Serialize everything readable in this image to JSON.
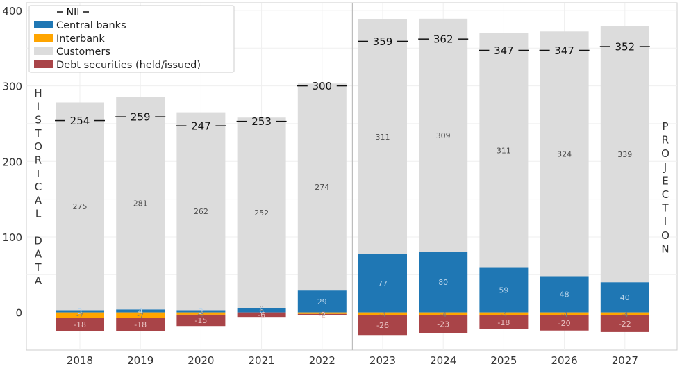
{
  "chart_data": {
    "type": "bar",
    "stacked": true,
    "categories": [
      "2018",
      "2019",
      "2020",
      "2021",
      "2022",
      "2023",
      "2024",
      "2025",
      "2026",
      "2027"
    ],
    "series": [
      {
        "name": "Central banks",
        "color": "#1f77b4",
        "values": [
          3,
          4,
          3,
          6,
          29,
          77,
          80,
          59,
          48,
          40
        ],
        "labels": [
          "3",
          "4",
          "3",
          "6",
          "29",
          "77",
          "80",
          "59",
          "48",
          "40"
        ]
      },
      {
        "name": "Interbank",
        "color": "#ffa500",
        "values": [
          -7,
          -7,
          -3,
          0,
          -2,
          -4,
          -4,
          -4,
          -4,
          -4
        ],
        "labels": [
          "-7",
          "-7",
          "-3",
          "0",
          "-2",
          "-4",
          "-4",
          "-4",
          "-4",
          "-4"
        ]
      },
      {
        "name": "Customers",
        "color": "#dcdcdc",
        "values": [
          275,
          281,
          262,
          252,
          274,
          311,
          309,
          311,
          324,
          339
        ],
        "labels": [
          "275",
          "281",
          "262",
          "252",
          "274",
          "311",
          "309",
          "311",
          "324",
          "339"
        ]
      },
      {
        "name": "Debt securities (held/issued)",
        "color": "#a94448",
        "values": [
          -18,
          -18,
          -15,
          -6,
          -2,
          -26,
          -23,
          -18,
          -20,
          -22
        ],
        "labels": [
          "-18",
          "-18",
          "-15",
          "-6",
          "-2",
          "-26",
          "-23",
          "-18",
          "-20",
          "-22"
        ]
      }
    ],
    "nii": {
      "name": "NII",
      "values": [
        254,
        259,
        247,
        253,
        300,
        359,
        362,
        347,
        347,
        352
      ]
    },
    "ylim": [
      -50,
      410
    ],
    "yticks": [
      0,
      100,
      200,
      300,
      400
    ],
    "grid": true,
    "legend_position": "top-left",
    "split_after": "2022",
    "annotations": {
      "left": "HISTORICAL DATA",
      "right": "PROJECTION"
    }
  }
}
